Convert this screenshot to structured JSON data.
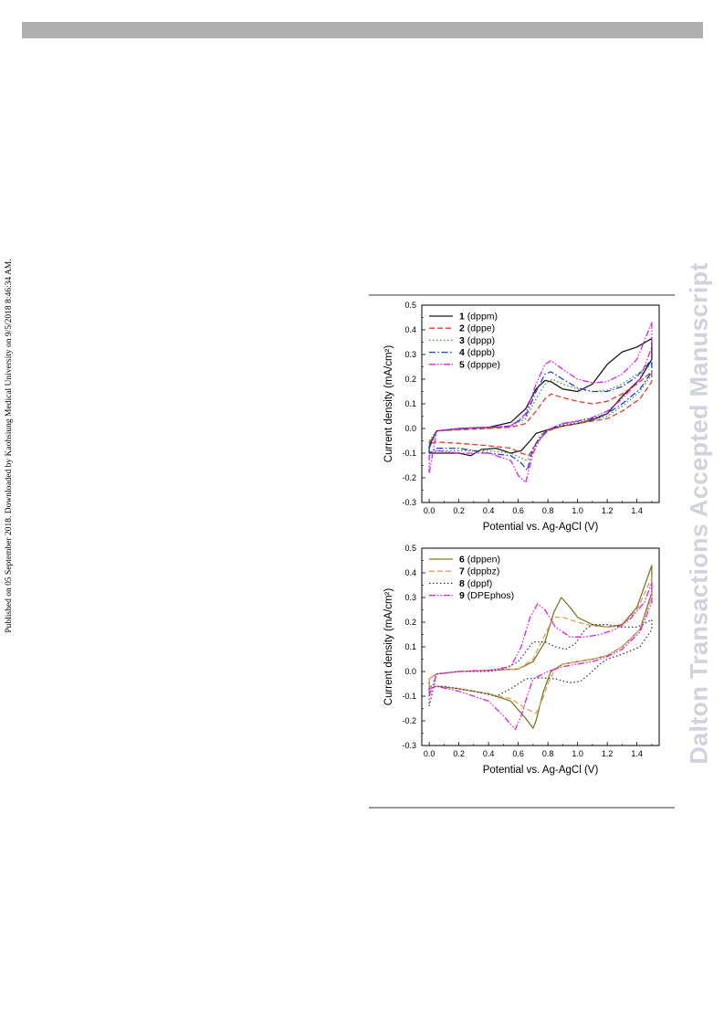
{
  "side_note": "Published on 05 September 2018. Downloaded by Kaohsiung Medical University on 9/5/2018 8:46:34 AM.",
  "watermark": "Dalton Transactions Accepted Manuscript",
  "colors": {
    "header_bar": "#b0b0b0",
    "rule": "#9a9a9a",
    "watermark": "#d2d2dc"
  },
  "chart_data": [
    {
      "type": "line",
      "title": "",
      "xlabel": "Potential vs. Ag-AgCl (V)",
      "ylabel": "Current density (mA/cm²)",
      "xlim": [
        -0.05,
        1.55
      ],
      "ylim": [
        -0.3,
        0.5
      ],
      "xticks": [
        "0.0",
        "0.2",
        "0.4",
        "0.6",
        "0.8",
        "1.0",
        "1.2",
        "1.4"
      ],
      "yticks": [
        "-0.3",
        "-0.2",
        "-0.1",
        "0.0",
        "0.1",
        "0.2",
        "0.3",
        "0.4",
        "0.5"
      ],
      "grid": false,
      "legend_position": "top-left",
      "series": [
        {
          "id": "1",
          "name": "(dppm)",
          "color": "#1a1a1a",
          "dash": "solid",
          "x": [
            0.0,
            0.05,
            0.2,
            0.4,
            0.55,
            0.65,
            0.72,
            0.78,
            0.82,
            0.9,
            1.0,
            1.1,
            1.2,
            1.3,
            1.4,
            1.5,
            1.5,
            1.42,
            1.3,
            1.2,
            1.1,
            1.0,
            0.9,
            0.8,
            0.72,
            0.68,
            0.62,
            0.55,
            0.45,
            0.35,
            0.28,
            0.2,
            0.1,
            0.0,
            0.0
          ],
          "y": [
            -0.07,
            -0.01,
            0.0,
            0.005,
            0.025,
            0.08,
            0.16,
            0.195,
            0.19,
            0.16,
            0.15,
            0.18,
            0.26,
            0.31,
            0.33,
            0.365,
            0.28,
            0.2,
            0.13,
            0.06,
            0.035,
            0.02,
            0.01,
            -0.005,
            -0.02,
            -0.05,
            -0.09,
            -0.1,
            -0.08,
            -0.085,
            -0.11,
            -0.1,
            -0.1,
            -0.1,
            -0.07
          ]
        },
        {
          "id": "2",
          "name": "(dppe)",
          "color": "#e03c28",
          "dash": "dash",
          "x": [
            0.0,
            0.05,
            0.2,
            0.4,
            0.55,
            0.65,
            0.72,
            0.78,
            0.82,
            0.9,
            1.0,
            1.1,
            1.2,
            1.3,
            1.4,
            1.5,
            1.5,
            1.42,
            1.3,
            1.2,
            1.1,
            1.0,
            0.9,
            0.8,
            0.75,
            0.7,
            0.67,
            0.62,
            0.55,
            0.4,
            0.2,
            0.05,
            0.0,
            0.0
          ],
          "y": [
            -0.06,
            -0.01,
            -0.005,
            0.0,
            0.005,
            0.02,
            0.07,
            0.12,
            0.14,
            0.125,
            0.11,
            0.1,
            0.11,
            0.14,
            0.18,
            0.23,
            0.19,
            0.12,
            0.07,
            0.04,
            0.03,
            0.02,
            0.01,
            -0.01,
            -0.04,
            -0.08,
            -0.11,
            -0.1,
            -0.08,
            -0.07,
            -0.06,
            -0.055,
            -0.06,
            -0.06
          ]
        },
        {
          "id": "3",
          "name": "(dppp)",
          "color": "#3a9a3a",
          "dash": "dot",
          "x": [
            0.0,
            0.05,
            0.2,
            0.4,
            0.55,
            0.65,
            0.72,
            0.78,
            0.83,
            0.9,
            1.0,
            1.1,
            1.2,
            1.3,
            1.4,
            1.5,
            1.5,
            1.42,
            1.3,
            1.2,
            1.1,
            1.0,
            0.9,
            0.8,
            0.75,
            0.7,
            0.66,
            0.62,
            0.55,
            0.4,
            0.2,
            0.05,
            0.0,
            0.0
          ],
          "y": [
            -0.05,
            -0.01,
            -0.005,
            0.0,
            0.01,
            0.04,
            0.12,
            0.18,
            0.2,
            0.18,
            0.16,
            0.15,
            0.155,
            0.18,
            0.22,
            0.26,
            0.22,
            0.15,
            0.09,
            0.05,
            0.035,
            0.025,
            0.015,
            -0.01,
            -0.04,
            -0.09,
            -0.13,
            -0.12,
            -0.1,
            -0.09,
            -0.09,
            -0.09,
            -0.1,
            -0.05
          ]
        },
        {
          "id": "4",
          "name": "(dppb)",
          "color": "#2a3ad8",
          "dash": "dashdot",
          "x": [
            0.0,
            0.05,
            0.2,
            0.4,
            0.55,
            0.65,
            0.72,
            0.78,
            0.82,
            0.9,
            1.0,
            1.1,
            1.2,
            1.3,
            1.4,
            1.5,
            1.5,
            1.42,
            1.3,
            1.2,
            1.1,
            1.0,
            0.9,
            0.8,
            0.75,
            0.7,
            0.66,
            0.62,
            0.55,
            0.4,
            0.2,
            0.05,
            0.0,
            0.0
          ],
          "y": [
            -0.08,
            -0.01,
            0.0,
            0.005,
            0.01,
            0.05,
            0.15,
            0.22,
            0.23,
            0.2,
            0.165,
            0.15,
            0.15,
            0.17,
            0.21,
            0.28,
            0.23,
            0.16,
            0.1,
            0.06,
            0.04,
            0.03,
            0.02,
            -0.005,
            -0.03,
            -0.08,
            -0.17,
            -0.14,
            -0.11,
            -0.1,
            -0.08,
            -0.08,
            -0.1,
            -0.08
          ]
        },
        {
          "id": "5",
          "name": "(dpppe)",
          "color": "#e020e0",
          "dash": "dashdotdot",
          "x": [
            0.0,
            0.05,
            0.2,
            0.4,
            0.55,
            0.65,
            0.72,
            0.78,
            0.82,
            0.9,
            1.0,
            1.1,
            1.2,
            1.3,
            1.4,
            1.5,
            1.5,
            1.42,
            1.3,
            1.2,
            1.1,
            1.0,
            0.9,
            0.8,
            0.75,
            0.7,
            0.65,
            0.6,
            0.55,
            0.4,
            0.2,
            0.05,
            0.0,
            0.0
          ],
          "y": [
            -0.18,
            -0.01,
            0.0,
            0.005,
            0.01,
            0.06,
            0.18,
            0.26,
            0.275,
            0.24,
            0.2,
            0.185,
            0.19,
            0.22,
            0.28,
            0.43,
            0.33,
            0.2,
            0.12,
            0.07,
            0.045,
            0.03,
            0.02,
            -0.005,
            -0.04,
            -0.1,
            -0.22,
            -0.19,
            -0.13,
            -0.1,
            -0.1,
            -0.09,
            -0.11,
            -0.18
          ]
        }
      ]
    },
    {
      "type": "line",
      "title": "",
      "xlabel": "Potential vs. Ag-AgCl (V)",
      "ylabel": "Current density (mA/cm²)",
      "xlim": [
        -0.05,
        1.55
      ],
      "ylim": [
        -0.3,
        0.5
      ],
      "xticks": [
        "0.0",
        "0.2",
        "0.4",
        "0.6",
        "0.8",
        "1.0",
        "1.2",
        "1.4"
      ],
      "yticks": [
        "-0.3",
        "-0.2",
        "-0.1",
        "0.0",
        "0.1",
        "0.2",
        "0.3",
        "0.4",
        "0.5"
      ],
      "grid": false,
      "legend_position": "top-left",
      "series": [
        {
          "id": "6",
          "name": "(dppen)",
          "color": "#7a7a26",
          "dash": "solid",
          "x": [
            0.0,
            0.05,
            0.2,
            0.4,
            0.6,
            0.7,
            0.78,
            0.84,
            0.89,
            0.95,
            1.0,
            1.1,
            1.2,
            1.3,
            1.4,
            1.5,
            1.5,
            1.42,
            1.3,
            1.2,
            1.1,
            1.0,
            0.9,
            0.82,
            0.77,
            0.72,
            0.7,
            0.65,
            0.55,
            0.4,
            0.2,
            0.05,
            0.0,
            0.0
          ],
          "y": [
            -0.03,
            -0.01,
            0.0,
            0.005,
            0.01,
            0.04,
            0.12,
            0.24,
            0.3,
            0.26,
            0.22,
            0.19,
            0.18,
            0.19,
            0.26,
            0.43,
            0.32,
            0.17,
            0.1,
            0.065,
            0.05,
            0.04,
            0.03,
            0.0,
            -0.08,
            -0.2,
            -0.23,
            -0.19,
            -0.12,
            -0.09,
            -0.07,
            -0.06,
            -0.07,
            -0.03
          ]
        },
        {
          "id": "7",
          "name": "(dppbz)",
          "color": "#e0a060",
          "dash": "dash",
          "x": [
            0.0,
            0.05,
            0.2,
            0.4,
            0.6,
            0.7,
            0.78,
            0.84,
            0.9,
            1.0,
            1.1,
            1.2,
            1.3,
            1.4,
            1.5,
            1.5,
            1.42,
            1.3,
            1.2,
            1.1,
            1.0,
            0.9,
            0.84,
            0.8,
            0.76,
            0.72,
            0.65,
            0.55,
            0.4,
            0.2,
            0.05,
            0.0,
            0.0
          ],
          "y": [
            -0.03,
            -0.01,
            0.0,
            0.005,
            0.01,
            0.05,
            0.15,
            0.22,
            0.22,
            0.2,
            0.185,
            0.18,
            0.185,
            0.25,
            0.38,
            0.3,
            0.17,
            0.1,
            0.065,
            0.05,
            0.04,
            0.03,
            0.0,
            -0.05,
            -0.12,
            -0.17,
            -0.15,
            -0.11,
            -0.09,
            -0.07,
            -0.06,
            -0.07,
            -0.03
          ]
        },
        {
          "id": "8",
          "name": "(dppf)",
          "color": "#3a3a5a",
          "dash": "dot",
          "x": [
            0.0,
            0.05,
            0.2,
            0.4,
            0.5,
            0.6,
            0.65,
            0.7,
            0.78,
            0.85,
            0.92,
            0.98,
            1.05,
            1.1,
            1.2,
            1.3,
            1.4,
            1.5,
            1.5,
            1.42,
            1.3,
            1.2,
            1.15,
            1.08,
            1.02,
            0.95,
            0.85,
            0.75,
            0.65,
            0.55,
            0.45,
            0.3,
            0.1,
            0.0,
            0.0
          ],
          "y": [
            -0.14,
            -0.01,
            0.0,
            0.0,
            0.01,
            0.04,
            0.08,
            0.12,
            0.12,
            0.1,
            0.09,
            0.11,
            0.17,
            0.19,
            0.19,
            0.18,
            0.18,
            0.21,
            0.17,
            0.1,
            0.07,
            0.05,
            0.03,
            -0.01,
            -0.04,
            -0.045,
            -0.03,
            -0.025,
            -0.03,
            -0.07,
            -0.1,
            -0.08,
            -0.06,
            -0.06,
            -0.14
          ]
        },
        {
          "id": "9",
          "name": "(DPEphos)",
          "color": "#e020e0",
          "dash": "dashdotdot",
          "x": [
            0.0,
            0.05,
            0.2,
            0.4,
            0.55,
            0.62,
            0.68,
            0.73,
            0.78,
            0.85,
            0.95,
            1.05,
            1.15,
            1.25,
            1.35,
            1.45,
            1.5,
            1.5,
            1.42,
            1.3,
            1.2,
            1.1,
            1.0,
            0.9,
            0.8,
            0.7,
            0.66,
            0.62,
            0.58,
            0.5,
            0.4,
            0.2,
            0.05,
            0.0,
            0.0
          ],
          "y": [
            -0.1,
            -0.01,
            0.0,
            0.005,
            0.02,
            0.1,
            0.22,
            0.275,
            0.25,
            0.18,
            0.14,
            0.14,
            0.15,
            0.17,
            0.21,
            0.28,
            0.36,
            0.28,
            0.16,
            0.09,
            0.06,
            0.04,
            0.03,
            0.02,
            0.0,
            -0.03,
            -0.1,
            -0.18,
            -0.235,
            -0.18,
            -0.12,
            -0.08,
            -0.06,
            -0.07,
            -0.1
          ]
        }
      ]
    }
  ]
}
